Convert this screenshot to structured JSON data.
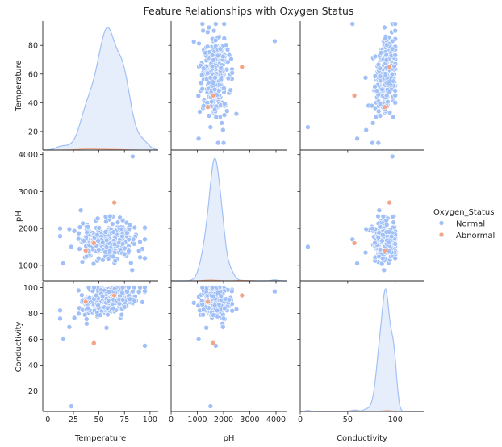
{
  "chart_data": {
    "type": "scatter",
    "title": "Feature Relationships with Oxygen Status",
    "variables": [
      {
        "key": "temperature",
        "label": "Temperature",
        "ticks": [
          0,
          25,
          50,
          75,
          100
        ],
        "lim": [
          -5,
          108
        ],
        "ticks_y": [
          20,
          40,
          60,
          80
        ],
        "lim_y": [
          7,
          97
        ]
      },
      {
        "key": "ph",
        "label": "pH",
        "ticks": [
          0,
          1000,
          2000,
          3000,
          4000
        ],
        "lim": [
          0,
          4400
        ],
        "ticks_y": [
          1000,
          2000,
          3000,
          4000
        ],
        "lim_y": [
          580,
          4080
        ]
      },
      {
        "key": "conductivity",
        "label": "Conductivity",
        "ticks": [
          0,
          50,
          100
        ],
        "lim": [
          0,
          130
        ],
        "ticks_y": [
          20,
          40,
          60,
          80,
          100
        ],
        "lim_y": [
          4,
          104
        ]
      }
    ],
    "legend": {
      "title": "Oxygen_Status",
      "placement": "right",
      "entries": [
        {
          "name": "Normal",
          "color": "#a1c0f7"
        },
        {
          "name": "Abnormal",
          "color": "#f4a587"
        }
      ]
    },
    "grid": false,
    "abnormal_points": [
      {
        "temperature": 65,
        "ph": 2700,
        "conductivity": 94
      },
      {
        "temperature": 37,
        "ph": 1400,
        "conductivity": 89
      },
      {
        "temperature": 45,
        "ph": 1600,
        "conductivity": 57
      }
    ],
    "normal_outliers": [
      {
        "temperature": 23,
        "ph": 1500,
        "conductivity": 8
      },
      {
        "temperature": 15,
        "ph": 1050,
        "conductivity": 60
      },
      {
        "temperature": 83,
        "ph": 3950,
        "conductivity": 97
      },
      {
        "temperature": 95,
        "ph": 1700,
        "conductivity": 55
      },
      {
        "temperature": 12,
        "ph": 2000,
        "conductivity": 76
      }
    ],
    "normal_cluster": {
      "count": 300,
      "temperature_mean": 60,
      "temperature_sd": 13,
      "ph_mean": 1500,
      "ph_sd": 380,
      "conductivity_mean": 90,
      "conductivity_sd": 6
    }
  },
  "colors": {
    "normal": "#a1c0f7",
    "abnormal": "#f4a587",
    "kde_fill": "#e6eefc",
    "axis": "#262626"
  }
}
